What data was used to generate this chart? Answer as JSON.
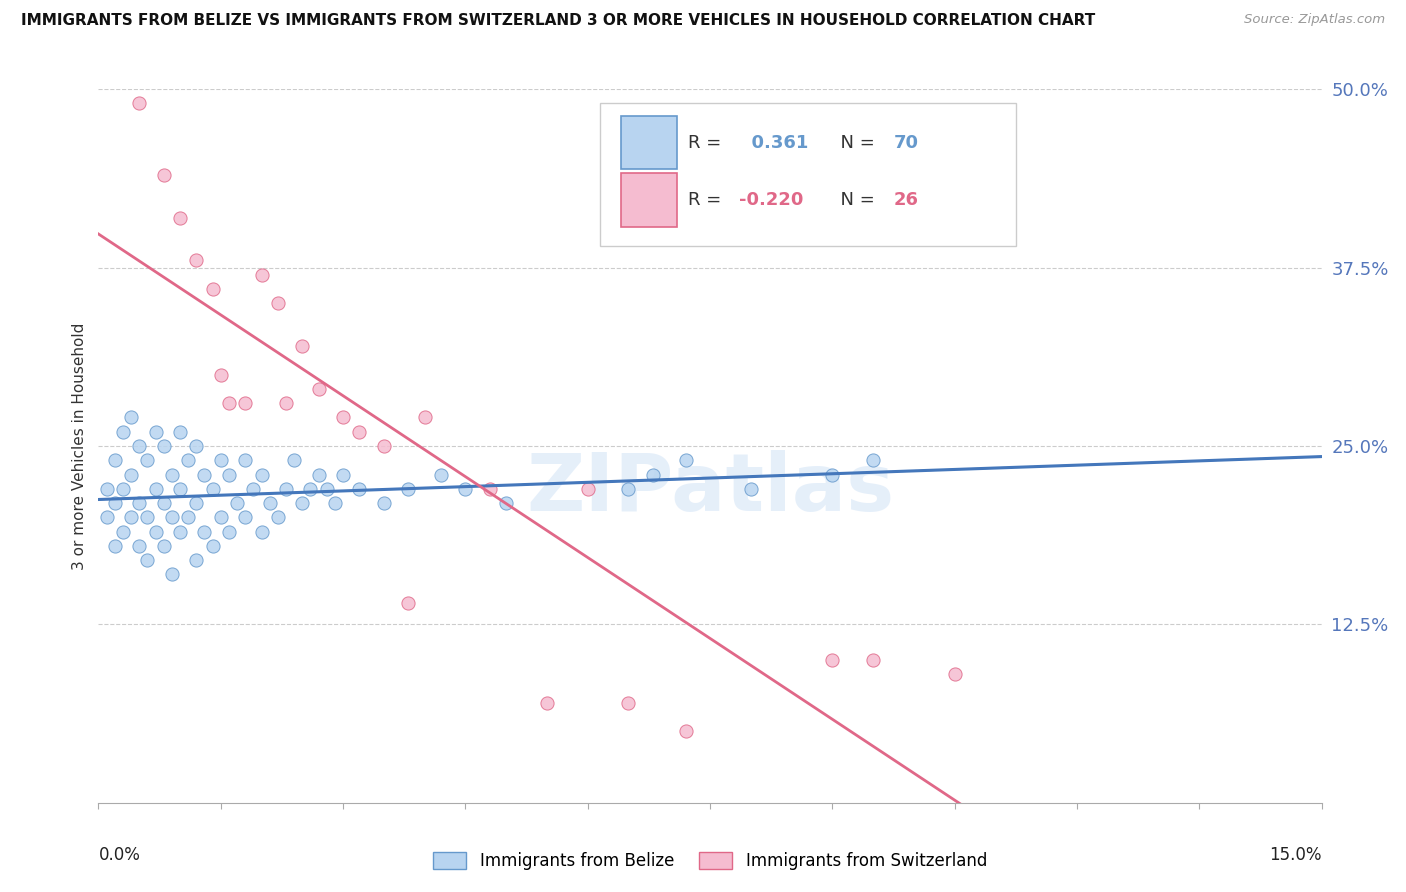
{
  "title": "IMMIGRANTS FROM BELIZE VS IMMIGRANTS FROM SWITZERLAND 3 OR MORE VEHICLES IN HOUSEHOLD CORRELATION CHART",
  "source": "Source: ZipAtlas.com",
  "ylabel": "3 or more Vehicles in Household",
  "xmin": 0.0,
  "xmax": 0.15,
  "ymin": 0.0,
  "ymax": 0.5,
  "ytick_vals": [
    0.125,
    0.25,
    0.375,
    0.5
  ],
  "ytick_labels": [
    "12.5%",
    "25.0%",
    "37.5%",
    "50.0%"
  ],
  "watermark": "ZIPatlas",
  "belize_fill": "#b8d4f0",
  "belize_edge": "#6699cc",
  "swiss_fill": "#f5bcd0",
  "swiss_edge": "#e06888",
  "belize_line": "#4477bb",
  "swiss_line": "#e06888",
  "belize_R": 0.361,
  "belize_N": 70,
  "switzerland_R": -0.22,
  "switzerland_N": 26,
  "belize_x": [
    0.001,
    0.001,
    0.002,
    0.002,
    0.002,
    0.003,
    0.003,
    0.003,
    0.004,
    0.004,
    0.004,
    0.005,
    0.005,
    0.005,
    0.006,
    0.006,
    0.006,
    0.007,
    0.007,
    0.007,
    0.008,
    0.008,
    0.008,
    0.009,
    0.009,
    0.009,
    0.01,
    0.01,
    0.01,
    0.011,
    0.011,
    0.012,
    0.012,
    0.012,
    0.013,
    0.013,
    0.014,
    0.014,
    0.015,
    0.015,
    0.016,
    0.016,
    0.017,
    0.018,
    0.018,
    0.019,
    0.02,
    0.02,
    0.021,
    0.022,
    0.023,
    0.024,
    0.025,
    0.026,
    0.027,
    0.028,
    0.029,
    0.03,
    0.032,
    0.035,
    0.038,
    0.042,
    0.045,
    0.05,
    0.065,
    0.068,
    0.072,
    0.08,
    0.09,
    0.095
  ],
  "belize_y": [
    0.2,
    0.22,
    0.18,
    0.21,
    0.24,
    0.19,
    0.22,
    0.26,
    0.2,
    0.23,
    0.27,
    0.18,
    0.21,
    0.25,
    0.17,
    0.2,
    0.24,
    0.19,
    0.22,
    0.26,
    0.18,
    0.21,
    0.25,
    0.16,
    0.2,
    0.23,
    0.19,
    0.22,
    0.26,
    0.2,
    0.24,
    0.17,
    0.21,
    0.25,
    0.19,
    0.23,
    0.18,
    0.22,
    0.2,
    0.24,
    0.19,
    0.23,
    0.21,
    0.2,
    0.24,
    0.22,
    0.19,
    0.23,
    0.21,
    0.2,
    0.22,
    0.24,
    0.21,
    0.22,
    0.23,
    0.22,
    0.21,
    0.23,
    0.22,
    0.21,
    0.22,
    0.23,
    0.22,
    0.21,
    0.22,
    0.23,
    0.24,
    0.22,
    0.23,
    0.24
  ],
  "swiss_x": [
    0.005,
    0.008,
    0.01,
    0.012,
    0.014,
    0.015,
    0.016,
    0.018,
    0.02,
    0.022,
    0.023,
    0.025,
    0.027,
    0.03,
    0.032,
    0.035,
    0.038,
    0.04,
    0.048,
    0.055,
    0.06,
    0.065,
    0.072,
    0.09,
    0.095,
    0.105
  ],
  "swiss_y": [
    0.49,
    0.44,
    0.41,
    0.38,
    0.36,
    0.3,
    0.28,
    0.28,
    0.37,
    0.35,
    0.28,
    0.32,
    0.29,
    0.27,
    0.26,
    0.25,
    0.14,
    0.27,
    0.22,
    0.07,
    0.22,
    0.07,
    0.05,
    0.1,
    0.1,
    0.09
  ]
}
